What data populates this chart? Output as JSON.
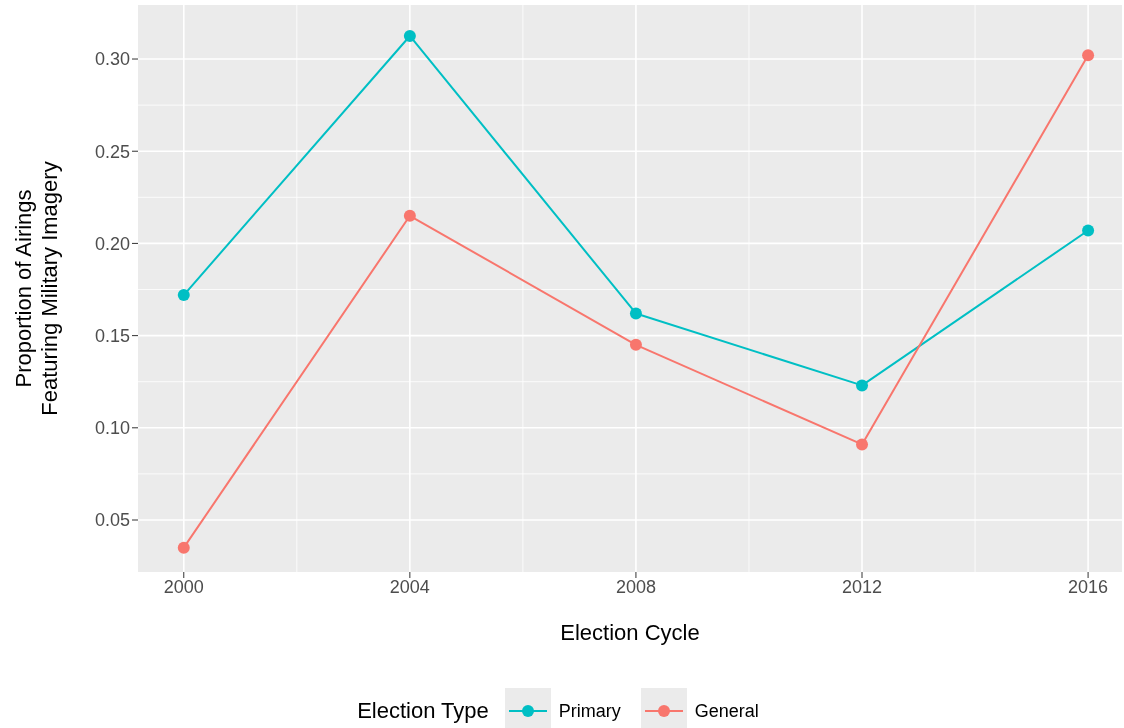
{
  "chart_data": {
    "type": "line",
    "xlabel": "Election Cycle",
    "ylabel": "Proportion of Airings\nFeaturing Military Imagery",
    "legend_title": "Election Type",
    "x": [
      2000,
      2004,
      2008,
      2012,
      2016
    ],
    "series": [
      {
        "name": "Primary",
        "color": "#00bfc4",
        "values": [
          0.172,
          0.3125,
          0.162,
          0.123,
          0.207
        ]
      },
      {
        "name": "General",
        "color": "#f8766d",
        "values": [
          0.035,
          0.215,
          0.145,
          0.091,
          0.302
        ]
      }
    ],
    "xlim": [
      1999.19,
      2016.6
    ],
    "xticks": [
      2000,
      2004,
      2008,
      2012,
      2016
    ],
    "ylim": [
      0.0218,
      0.3293
    ],
    "yticks": [
      {
        "value": 0.05,
        "label": "0.05"
      },
      {
        "value": 0.1,
        "label": "0.10"
      },
      {
        "value": 0.15,
        "label": "0.15"
      },
      {
        "value": 0.2,
        "label": "0.20"
      },
      {
        "value": 0.25,
        "label": "0.25"
      },
      {
        "value": 0.3,
        "label": "0.30"
      }
    ],
    "grid": true,
    "legend": "bottom",
    "marker": "circle",
    "line_style": "solid"
  }
}
